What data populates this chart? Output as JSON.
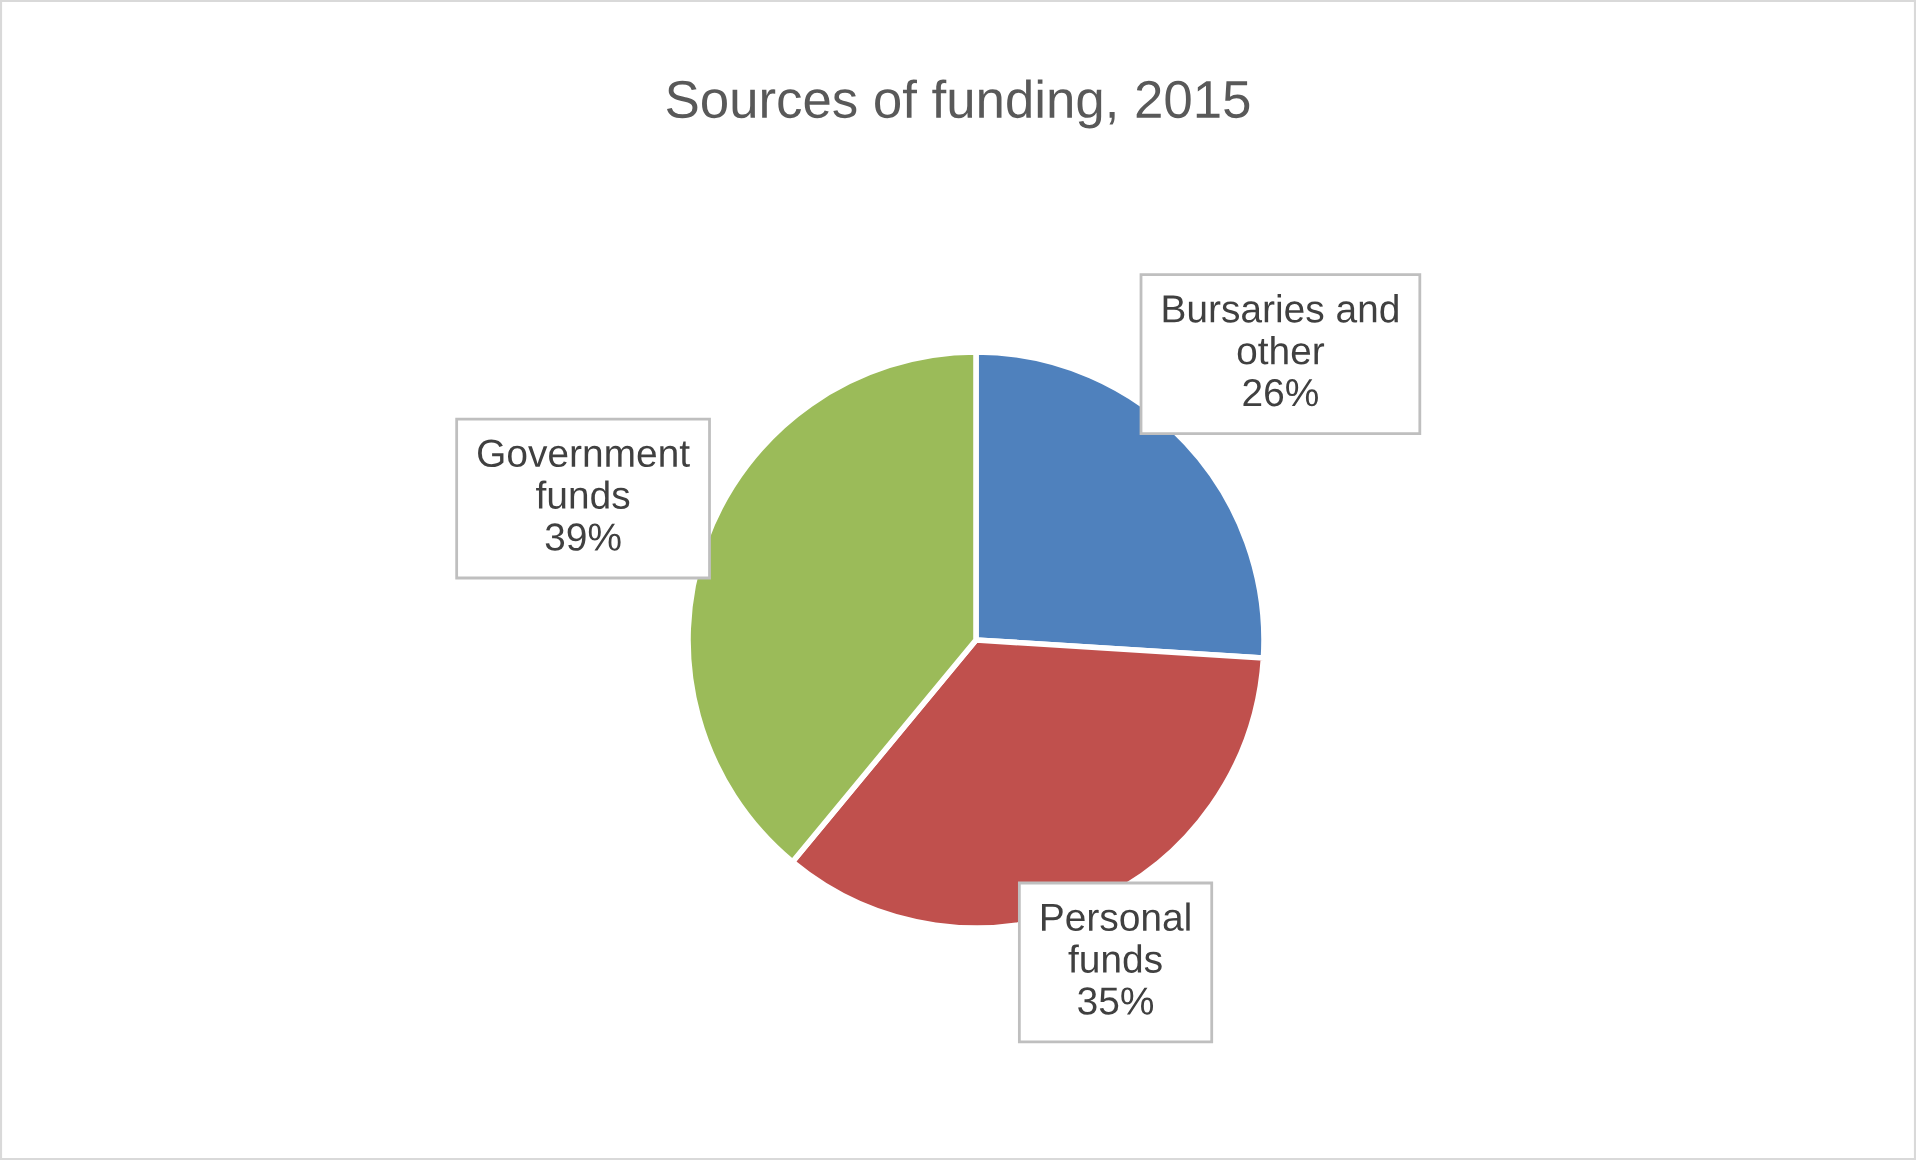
{
  "chart_data": {
    "type": "pie",
    "title": "Sources of funding, 2015",
    "categories": [
      "Bursaries and other",
      "Personal funds",
      "Government funds"
    ],
    "values": [
      26,
      35,
      39
    ],
    "value_labels": [
      "26%",
      "35%",
      "39%"
    ],
    "colors": [
      "#4f81bd",
      "#c0504d",
      "#9bbb59"
    ],
    "legend": false
  }
}
